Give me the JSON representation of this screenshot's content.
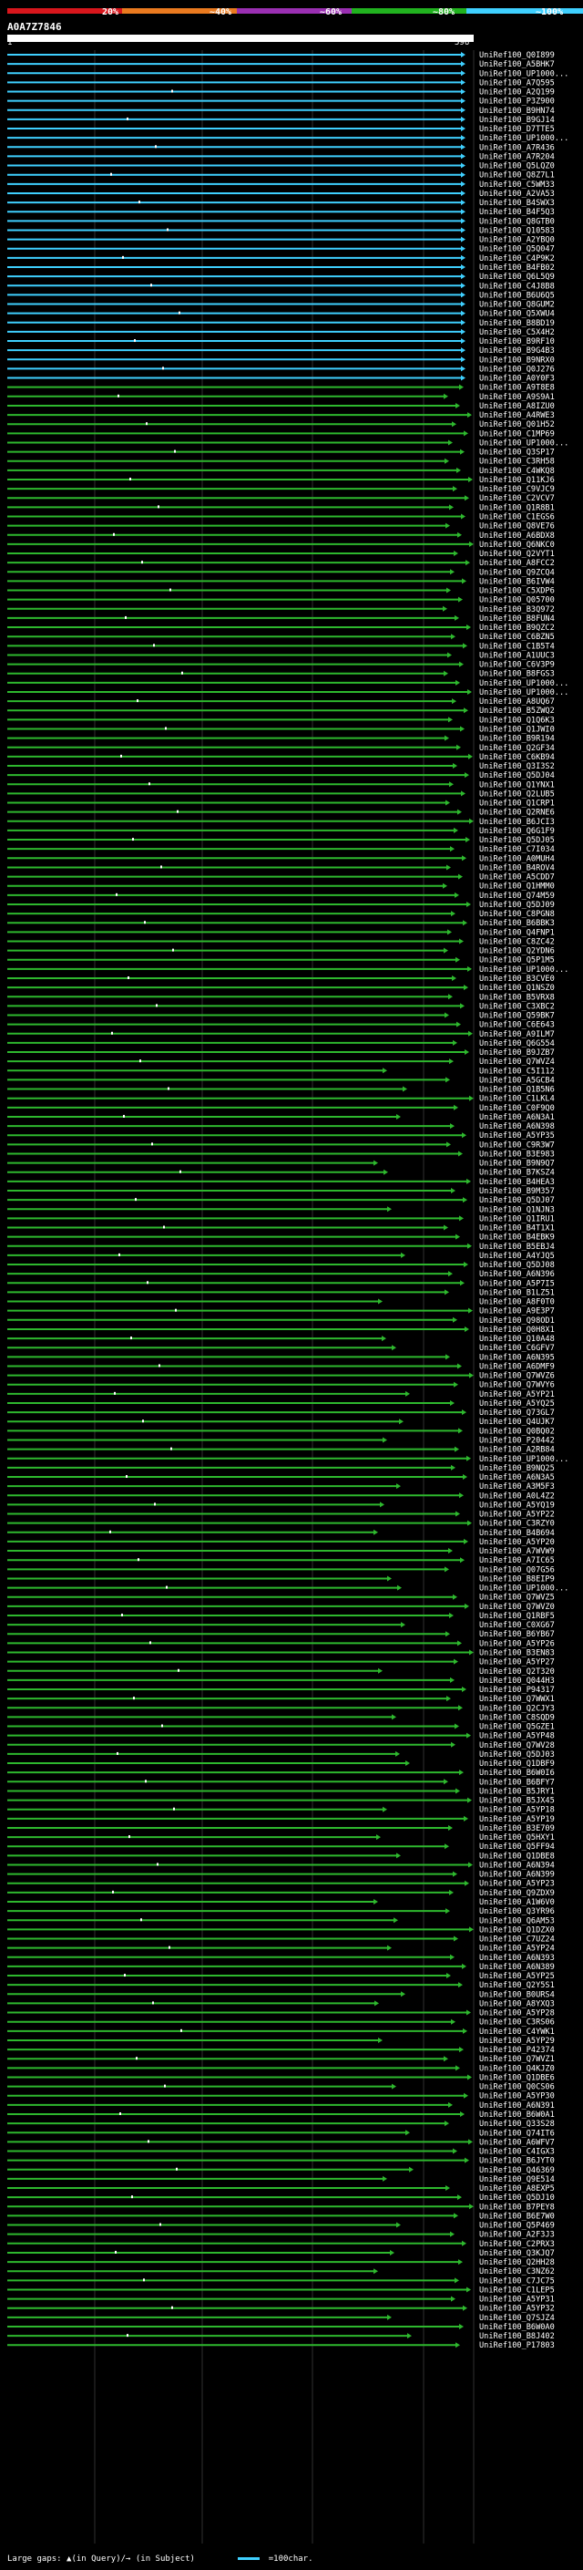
{
  "legend": {
    "labels": [
      "20%",
      "~40%",
      "~60%",
      "~80%",
      "~100%"
    ],
    "colors": [
      "#d8161c",
      "#ea7a1f",
      "#9a2fb2",
      "#21b21f",
      "#3fd0ff"
    ]
  },
  "query": {
    "title": "A0A7Z7846",
    "start": "1",
    "end": "596"
  },
  "colors": {
    "top_tier": "#3fd0ff",
    "mid_tier": "#2eb82e",
    "gap": "#ffffff",
    "grid": "#303030"
  },
  "hits_visible_text": [
    "UniRef100_Q0I899",
    "UniRef100_A5BHK7",
    "UniRef100_UP1000...",
    "UniRef100_A7Q595",
    "UniRef100_A2Q199",
    "UniRef100_P3Z900",
    "UniRef100_B9HN74",
    "UniRef100_B9GJ14",
    "UniRef100_D7TTE5",
    "UniRef100_UP1000...",
    "UniRef100_A7R436",
    "UniRef100_A7R204",
    "UniRef100_Q5LQZ0",
    "UniRef100_Q8Z7L1",
    "UniRef100_C5WM33",
    "UniRef100_A2VA53",
    "UniRef100_B4SWX3",
    "UniRef100_B4F5Q3",
    "UniRef100_Q8GTB0",
    "UniRef100_Q10583",
    "UniRef100_A2YBQ0",
    "UniRef100_Q5Q047",
    "UniRef100_C4P9K2",
    "UniRef100_B4FB02",
    "UniRef100_Q6L5Q9",
    "UniRef100_C4J8B8",
    "UniRef100_B6U6Q5",
    "UniRef100_Q8GUM2",
    "UniRef100_Q5XWU4",
    "UniRef100_B8BD19",
    "UniRef100_C5X4H2",
    "UniRef100_B9RF10",
    "UniRef100_B9G4B3",
    "UniRef100_B9NRX0",
    "UniRef100_Q0J276",
    "UniRef100_A0Y0F3",
    "UniRef100_A9T8E8",
    "UniRef100_A9S9A1",
    "UniRef100_A8IZU0",
    "UniRef100_A4RWE3",
    "UniRef100_Q01H52",
    "UniRef100_C1MP69",
    "UniRef100_UP1000...",
    "UniRef100_Q3SP17",
    "UniRef100_C3RH58",
    "UniRef100_C4WKQ8",
    "UniRef100_Q11KJ6",
    "UniRef100_C9VJC9",
    "UniRef100_C2VCV7",
    "UniRef100_Q1R8B1",
    "UniRef100_C1EGS6",
    "UniRef100_Q8VE76",
    "UniRef100_A6BDX8",
    "UniRef100_Q6NKC0",
    "UniRef100_Q2VYT1",
    "UniRef100_A8FCC2",
    "UniRef100_Q9ZCQ4",
    "UniRef100_B6IVW4",
    "UniRef100_C5XDP6",
    "UniRef100_Q05700",
    "UniRef100_B3Q972",
    "UniRef100_B8FUN4",
    "UniRef100_B9QZC2",
    "UniRef100_C6BZN5",
    "UniRef100_C1B5T4",
    "UniRef100_A1UUC3",
    "UniRef100_C6V3P9",
    "UniRef100_B8FGS3",
    "UniRef100_UP1000...",
    "UniRef100_UP1000...",
    "UniRef100_A8UQ67",
    "UniRef100_B5ZWQ2",
    "UniRef100_Q1Q6K3",
    "UniRef100_Q1JWI0",
    "UniRef100_B9R194",
    "UniRef100_Q2GF34",
    "UniRef100_C6KB94",
    "UniRef100_Q3I3S2",
    "UniRef100_Q5DJ04",
    "UniRef100_Q1YNX1",
    "UniRef100_Q2LUB5",
    "UniRef100_Q1CRP1",
    "UniRef100_Q2RNE6",
    "UniRef100_B6JCI3",
    "UniRef100_Q6G1F9",
    "UniRef100_Q5DJ05",
    "UniRef100_C7I034",
    "UniRef100_A0MUH4",
    "UniRef100_B4ROV4",
    "UniRef100_A5CDD7",
    "UniRef100_Q1HMM0",
    "UniRef100_Q74M59",
    "UniRef100_Q5DJ09",
    "UniRef100_C8PGN8",
    "UniRef100_B6BBK3",
    "UniRef100_Q4FNP1",
    "UniRef100_C8ZC42",
    "UniRef100_Q2YDN6",
    "UniRef100_Q5P1M5",
    "UniRef100_UP1000...",
    "UniRef100_B3CVE0",
    "UniRef100_Q1NSZ0",
    "UniRef100_B5VRX8",
    "UniRef100_C3XBC2",
    "UniRef100_Q59BK7",
    "UniRef100_C6E643",
    "UniRef100_A9ILM7",
    "UniRef100_Q6G554",
    "UniRef100_B9JZB7",
    "UniRef100_Q7WVZ4",
    "UniRef100_C5I112",
    "UniRef100_A5GCB4",
    "UniRef100_Q1B5N6",
    "UniRef100_C1LKL4",
    "UniRef100_C0F9Q0",
    "UniRef100_A6N3A1",
    "UniRef100_A6N398",
    "UniRef100_A5YP35",
    "UniRef100_C9R3W7",
    "UniRef100_B3E983",
    "UniRef100_B9N9Q7",
    "UniRef100_B7KSZ4",
    "UniRef100_B4HEA3",
    "UniRef100_B9M357",
    "UniRef100_Q5DJ07",
    "UniRef100_Q1NJN3",
    "UniRef100_Q1IRU1",
    "UniRef100_B4T1X1",
    "UniRef100_B4EBK9",
    "UniRef100_B5EBJ4",
    "UniRef100_A4YJQ5",
    "UniRef100_Q5DJ08",
    "UniRef100_A6N396",
    "UniRef100_A5P7I5",
    "UniRef100_B1LZ51",
    "UniRef100_A8F0T0",
    "UniRef100_A9E3P7",
    "UniRef100_Q98OD1",
    "UniRef100_Q0H8X1",
    "UniRef100_Q10A48",
    "UniRef100_C6GFV7",
    "UniRef100_A6N395",
    "UniRef100_A6DMF9",
    "UniRef100_Q7WVZ6",
    "UniRef100_Q7WVY6",
    "UniRef100_A5YP21",
    "UniRef100_A5YQ25",
    "UniRef100_Q73GL7",
    "UniRef100_Q4UJK7",
    "UniRef100_Q0BQ02",
    "UniRef100_P20442",
    "UniRef100_A2RB84",
    "UniRef100_UP1000...",
    "UniRef100_B9NQ25",
    "UniRef100_A6N3A5",
    "UniRef100_A3M5F3",
    "UniRef100_A0L4Z2",
    "UniRef100_A5YQ19",
    "UniRef100_A5YP22",
    "UniRef100_C3RZY0",
    "UniRef100_B4B694",
    "UniRef100_A5YP20",
    "UniRef100_A7WVW9",
    "UniRef100_A7IC65",
    "UniRef100_Q07G56",
    "UniRef100_B8EIP9",
    "UniRef100_UP1000...",
    "UniRef100_Q7WVZ5",
    "UniRef100_Q7WVZ0",
    "UniRef100_Q1RBF5",
    "UniRef100_C0XG67",
    "UniRef100_B6YB67",
    "UniRef100_A5YP26",
    "UniRef100_B3EN83",
    "UniRef100_A5YP27",
    "UniRef100_Q2T320",
    "UniRef100_Q044H3",
    "UniRef100_P94317",
    "UniRef100_Q7WWX1",
    "UniRef100_Q2CJY3",
    "UniRef100_C8SQD9",
    "UniRef100_Q5GZE1",
    "UniRef100_A5YP48",
    "UniRef100_Q7WV28",
    "UniRef100_Q5DJ03",
    "UniRef100_Q1DBF9",
    "UniRef100_B6W0I6",
    "UniRef100_B6BFY7",
    "UniRef100_B5JRY1",
    "UniRef100_B5JX45",
    "UniRef100_A5YP18",
    "UniRef100_A5YP19",
    "UniRef100_B3E709",
    "UniRef100_Q5HXY1",
    "UniRef100_Q5FF94",
    "UniRef100_Q1DBE8",
    "UniRef100_A6N394",
    "UniRef100_A6N399",
    "UniRef100_A5YP23",
    "UniRef100_Q9ZDX9",
    "UniRef100_A1W6V0",
    "UniRef100_Q3YR96",
    "UniRef100_Q6AM53",
    "UniRef100_Q1DZX0",
    "UniRef100_C7UZ24",
    "UniRef100_A5YP24",
    "UniRef100_A6N393",
    "UniRef100_A6N389",
    "UniRef100_A5YP25",
    "UniRef100_Q2Y5S1",
    "UniRef100_B0URS4",
    "UniRef100_A8YXQ3",
    "UniRef100_A5YP28",
    "UniRef100_C3RS06",
    "UniRef100_C4YWK1",
    "UniRef100_A5YP29",
    "UniRef100_P42374",
    "UniRef100_Q7WVZ1",
    "UniRef100_Q4KJZ0",
    "UniRef100_Q1DBE6",
    "UniRef100_Q0CS06",
    "UniRef100_A5YP30",
    "UniRef100_A6N391",
    "UniRef100_B6W0A1",
    "UniRef100_Q33S28",
    "UniRef100_Q74IT6",
    "UniRef100_A6WFV7",
    "UniRef100_C4IGX3",
    "UniRef100_B6JYT0",
    "UniRef100_Q46369",
    "UniRef100_Q9E514",
    "UniRef100_A8EXP5",
    "UniRef100_Q5DJ10",
    "UniRef100_B7PEY8",
    "UniRef100_B6E7W0",
    "UniRef100_Q5P469",
    "UniRef100_A2F3J3",
    "UniRef100_C2PRX3",
    "UniRef100_Q3KJQ7",
    "UniRef100_Q2HH28",
    "UniRef100_C3NZ62",
    "UniRef100_C7JC75",
    "UniRef100_C1LEP5",
    "UniRef100_A5YP31",
    "UniRef100_A5YP32",
    "UniRef100_Q7SJZ4",
    "UniRef100_B6W0A0",
    "UniRef100_B8J402",
    "UniRef100_P17803"
  ],
  "footer": {
    "legend_text": "Large gaps: ▲(in Query)/→ (in Subject)",
    "scale_text": "=100char."
  }
}
